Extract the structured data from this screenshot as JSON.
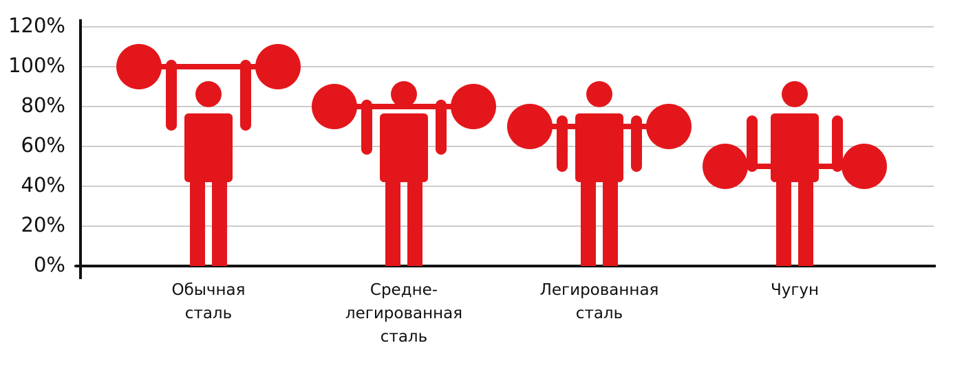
{
  "chart_data": {
    "type": "pictogram",
    "categories": [
      "Обычная\nсталь",
      "Средне-\nлегированная\nсталь",
      "Легированная\nсталь",
      "Чугун"
    ],
    "values": [
      100,
      80,
      70,
      50
    ],
    "color": "#e3171b",
    "ylim": [
      0,
      120
    ],
    "yticks": [
      {
        "value": 0,
        "label": "0%"
      },
      {
        "value": 20,
        "label": "20%"
      },
      {
        "value": 40,
        "label": "40%"
      },
      {
        "value": 60,
        "label": "60%"
      },
      {
        "value": 80,
        "label": "80%"
      },
      {
        "value": 100,
        "label": "100%"
      },
      {
        "value": 120,
        "label": "120%"
      }
    ],
    "grid": true
  }
}
